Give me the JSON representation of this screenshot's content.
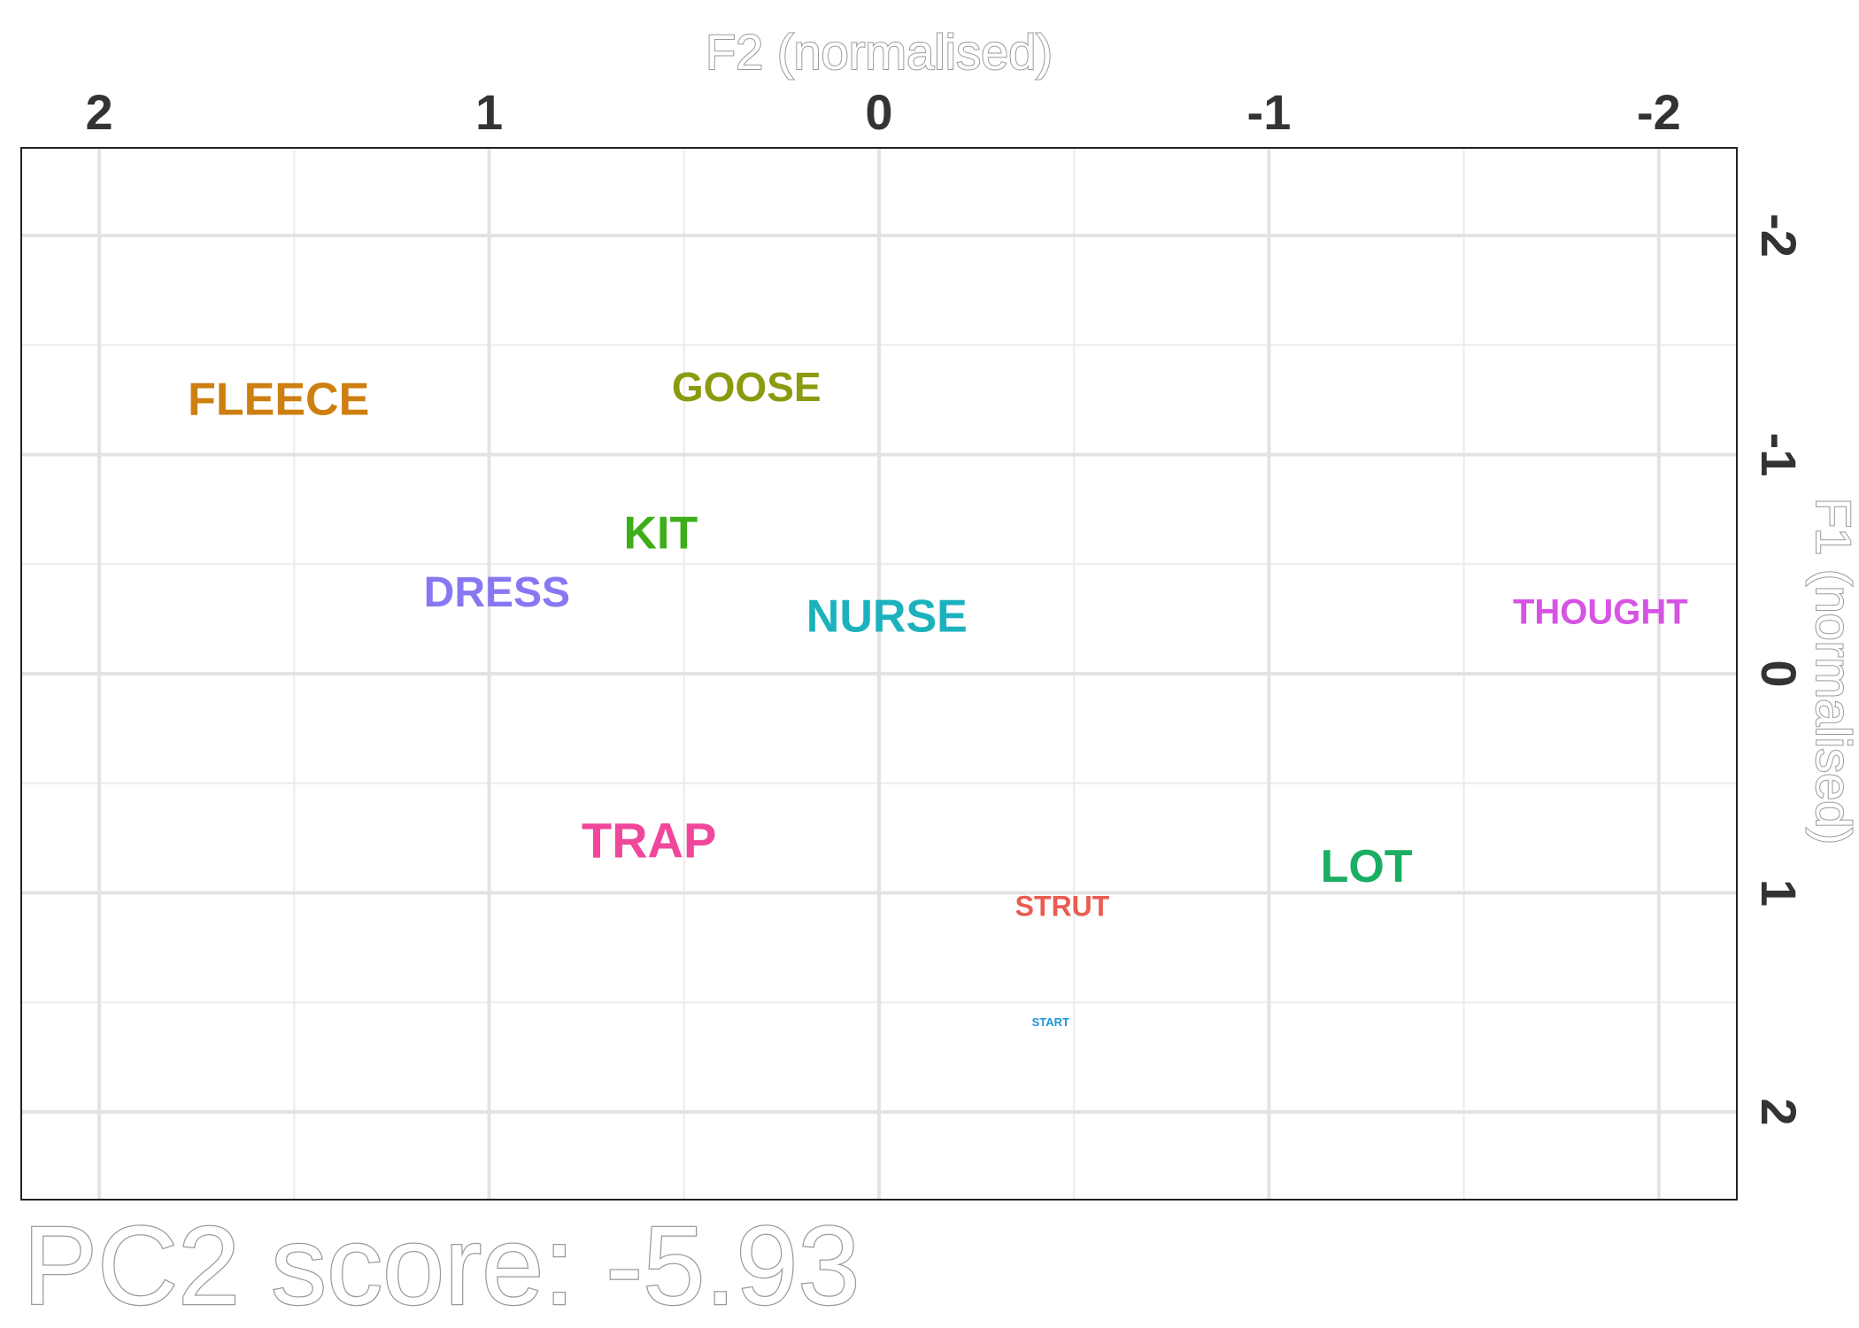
{
  "chart_data": {
    "type": "scatter",
    "xlabel": "F2 (normalised)",
    "ylabel": "F1 (normalised)",
    "xlim": [
      2.2,
      -2.2
    ],
    "ylim": [
      -2.4,
      2.4
    ],
    "x_ticks": [
      2,
      1,
      0,
      -1,
      -2
    ],
    "y_ticks": [
      -2,
      -1,
      0,
      1,
      2
    ],
    "x_tick_labels": [
      "2",
      "1",
      "0",
      "-1",
      "-2"
    ],
    "y_tick_labels": [
      "-2",
      "-1",
      "0",
      "1",
      "2"
    ],
    "x_minor": [
      1.5,
      0.5,
      -0.5,
      -1.5
    ],
    "y_minor": [
      -1.5,
      -0.5,
      0.5,
      1.5
    ],
    "grid": true,
    "x_axis_position": "top",
    "y_axis_position": "right",
    "caption": "PC2 score: -5.93",
    "points": [
      {
        "label": "FLEECE",
        "x": 1.54,
        "y": -1.25,
        "color": "#CD7F10",
        "size": 52
      },
      {
        "label": "GOOSE",
        "x": 0.34,
        "y": -1.31,
        "color": "#8C9A10",
        "size": 46
      },
      {
        "label": "KIT",
        "x": 0.56,
        "y": -0.64,
        "color": "#3DAE1A",
        "size": 52
      },
      {
        "label": "DRESS",
        "x": 0.98,
        "y": -0.37,
        "color": "#8778F2",
        "size": 48
      },
      {
        "label": "NURSE",
        "x": -0.02,
        "y": -0.26,
        "color": "#1BB2BD",
        "size": 52
      },
      {
        "label": "THOUGHT",
        "x": -1.85,
        "y": -0.28,
        "color": "#D653E3",
        "size": 40
      },
      {
        "label": "TRAP",
        "x": 0.59,
        "y": 0.76,
        "color": "#F0479A",
        "size": 56
      },
      {
        "label": "LOT",
        "x": -1.25,
        "y": 0.88,
        "color": "#1AAE63",
        "size": 52
      },
      {
        "label": "STRUT",
        "x": -0.47,
        "y": 1.06,
        "color": "#EA5C52",
        "size": 32
      },
      {
        "label": "START",
        "x": -0.44,
        "y": 1.59,
        "color": "#1E96D6",
        "size": 13
      }
    ]
  }
}
